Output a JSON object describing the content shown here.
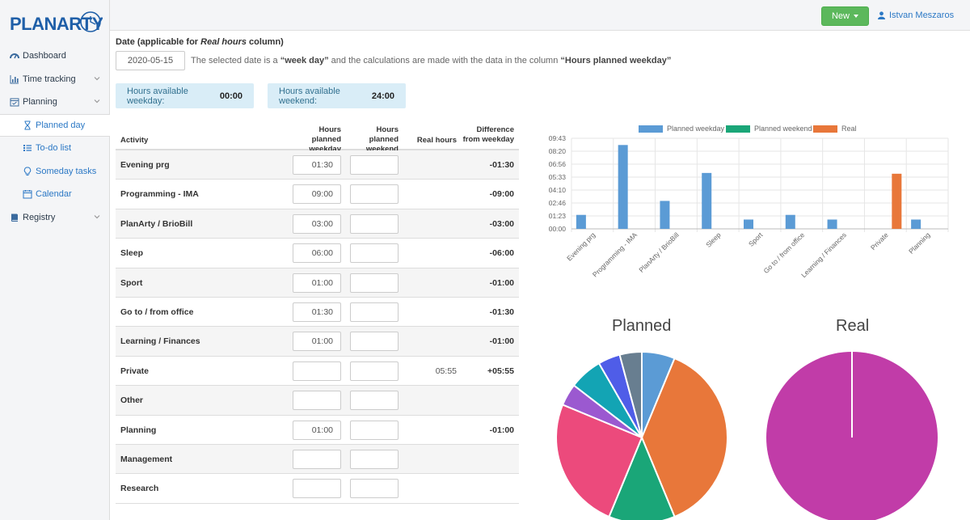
{
  "brand": {
    "logo_text": "PLANARTY"
  },
  "sidebar": {
    "items": [
      {
        "label": "Dashboard",
        "icon": "dashboard-icon"
      },
      {
        "label": "Time tracking",
        "icon": "bar-chart-icon"
      },
      {
        "label": "Planning",
        "icon": "calendar-check-icon"
      },
      {
        "label": "Planned day",
        "icon": "hourglass-icon"
      },
      {
        "label": "To-do list",
        "icon": "list-icon"
      },
      {
        "label": "Someday tasks",
        "icon": "lightbulb-icon"
      },
      {
        "label": "Calendar",
        "icon": "calendar-icon"
      },
      {
        "label": "Registry",
        "icon": "book-icon"
      }
    ]
  },
  "header": {
    "new_label": "New",
    "user_name": "Istvan Meszaros"
  },
  "date": {
    "label_prefix": "Date (applicable for ",
    "label_em": "Real hours",
    "label_suffix": " column)",
    "value": "2020-05-15",
    "note_a": "The selected date is a ",
    "note_b": "“week day”",
    "note_c": " and the calculations are made with the data in the column ",
    "note_d": "“Hours planned weekday”"
  },
  "availability": {
    "weekday_label": "Hours available weekday:",
    "weekday_value": "00:00",
    "weekend_label": "Hours available weekend:",
    "weekend_value": "24:00"
  },
  "table": {
    "headers": {
      "activity": "Activity",
      "planned_weekday_1": "Hours planned",
      "planned_weekday_2": "weekday",
      "planned_weekend_1": "Hours planned",
      "planned_weekend_2": "weekend",
      "real": "Real hours",
      "diff_1": "Difference",
      "diff_2": "from weekday"
    },
    "rows": [
      {
        "activity": "Evening prg",
        "weekday": "01:30",
        "weekend": "",
        "real": "",
        "diff": "-01:30"
      },
      {
        "activity": "Programming - IMA",
        "weekday": "09:00",
        "weekend": "",
        "real": "",
        "diff": "-09:00"
      },
      {
        "activity": "PlanArty / BrioBill",
        "weekday": "03:00",
        "weekend": "",
        "real": "",
        "diff": "-03:00"
      },
      {
        "activity": "Sleep",
        "weekday": "06:00",
        "weekend": "",
        "real": "",
        "diff": "-06:00"
      },
      {
        "activity": "Sport",
        "weekday": "01:00",
        "weekend": "",
        "real": "",
        "diff": "-01:00"
      },
      {
        "activity": "Go to / from office",
        "weekday": "01:30",
        "weekend": "",
        "real": "",
        "diff": "-01:30"
      },
      {
        "activity": "Learning / Finances",
        "weekday": "01:00",
        "weekend": "",
        "real": "",
        "diff": "-01:00"
      },
      {
        "activity": "Private",
        "weekday": "",
        "weekend": "",
        "real": "05:55",
        "diff": "+05:55"
      },
      {
        "activity": "Other",
        "weekday": "",
        "weekend": "",
        "real": "",
        "diff": ""
      },
      {
        "activity": "Planning",
        "weekday": "01:00",
        "weekend": "",
        "real": "",
        "diff": "-01:00"
      },
      {
        "activity": "Management",
        "weekday": "",
        "weekend": "",
        "real": "",
        "diff": ""
      },
      {
        "activity": "Research",
        "weekday": "",
        "weekend": "",
        "real": "",
        "diff": ""
      }
    ]
  },
  "colors": {
    "weekday": "#5b9bd5",
    "weekend": "#1aa678",
    "real": "#e8773a",
    "real_pie": "#c13ca8"
  },
  "chart_data": [
    {
      "type": "bar",
      "categories": [
        "Evening prg",
        "Programming - IMA",
        "PlanArty / BrioBill",
        "Sleep",
        "Sport",
        "Go to / from office",
        "Learning / Finances",
        "Private",
        "Planning"
      ],
      "series": [
        {
          "name": "Planned weekday",
          "color": "#5b9bd5",
          "values": [
            1.5,
            9,
            3,
            6,
            1,
            1.5,
            1,
            0,
            1
          ]
        },
        {
          "name": "Planned weekend",
          "color": "#1aa678",
          "values": [
            0,
            0,
            0,
            0,
            0,
            0,
            0,
            0,
            0
          ]
        },
        {
          "name": "Real",
          "color": "#e8773a",
          "values": [
            0,
            0,
            0,
            0,
            0,
            0,
            0,
            5.917,
            0
          ]
        }
      ],
      "yticks": [
        "00:00",
        "01:23",
        "02:46",
        "04:10",
        "05:33",
        "06:56",
        "08:20",
        "09:43"
      ],
      "ylim": [
        0,
        9.72
      ],
      "grid": true,
      "legend": "top"
    },
    {
      "type": "pie",
      "title": "Planned",
      "values": [
        1.5,
        9,
        3,
        6,
        1,
        1.5,
        1,
        1
      ],
      "colors": [
        "#5b9bd5",
        "#e8773a",
        "#1aa678",
        "#ec4a7c",
        "#9b59d0",
        "#13a4b4",
        "#4f5de8",
        "#687e90"
      ]
    },
    {
      "type": "pie",
      "title": "Real",
      "values": [
        5.917
      ],
      "colors": [
        "#c13ca8"
      ]
    }
  ]
}
